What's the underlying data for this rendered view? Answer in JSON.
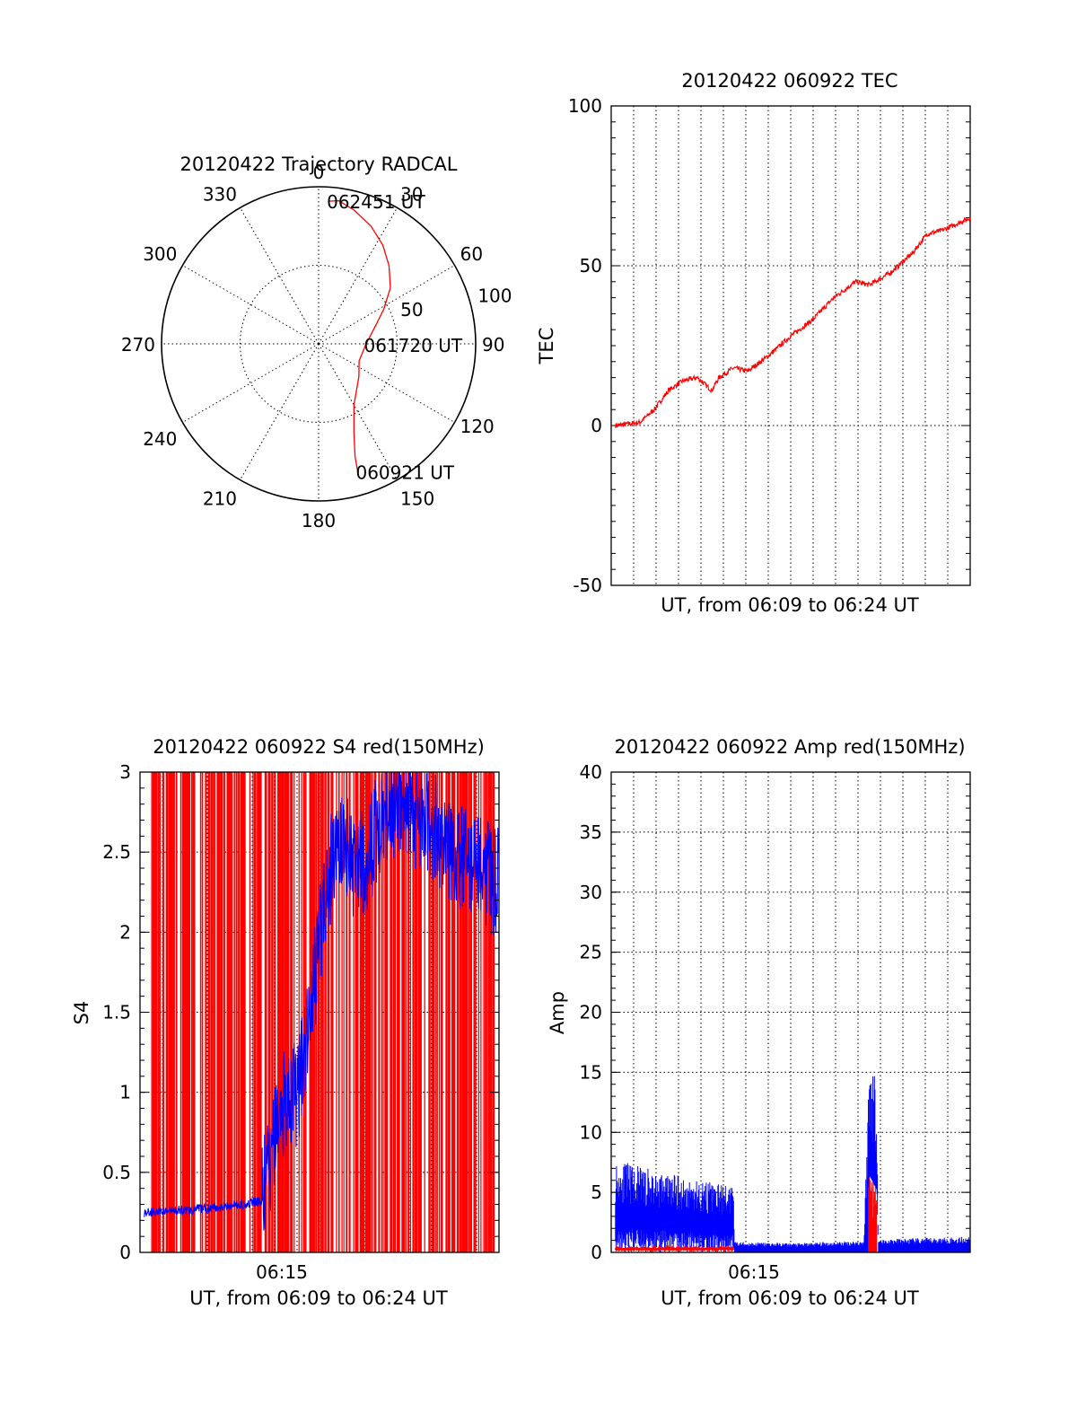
{
  "chart_data": [
    {
      "type": "polar",
      "title": "20120422 Trajectory RADCAL",
      "azimuth_labels": [
        "0",
        "30",
        "60",
        "90",
        "120",
        "150",
        "180",
        "210",
        "240",
        "270",
        "300",
        "330"
      ],
      "radial_labels": [
        "50",
        "100"
      ],
      "rmax": 100,
      "grid": true,
      "colors": {
        "trajectory": "#ff0000"
      },
      "series": [
        {
          "values": [
            [
              163,
              85
            ],
            [
              162,
              75
            ],
            [
              158,
              60
            ],
            [
              150,
              45
            ],
            [
              129,
              33
            ],
            [
              113,
              28
            ],
            [
              91,
              30
            ],
            [
              74,
              37
            ],
            [
              62,
              47
            ],
            [
              52,
              58
            ],
            [
              42,
              67
            ],
            [
              33,
              75
            ],
            [
              24,
              82
            ],
            [
              15,
              88
            ],
            [
              8,
              92
            ],
            [
              4,
              91
            ]
          ]
        }
      ],
      "annotations": [
        {
          "text": "062451 UT",
          "az": 4,
          "r": 91
        },
        {
          "text": "061720 UT",
          "az": 91,
          "r": 30
        },
        {
          "text": "060921 UT",
          "az": 163,
          "r": 85
        }
      ]
    },
    {
      "type": "line",
      "title": "20120422 060922 TEC",
      "xlabel": "UT, from 06:09 to 06:24 UT",
      "ylabel": "TEC",
      "xlim": [
        6.15,
        6.4
      ],
      "ylim": [
        -50,
        100
      ],
      "yticks": [
        "100",
        "50",
        "0",
        "-50"
      ],
      "grid": true,
      "colors": {
        "tec": "#ff0000"
      },
      "series": [
        {
          "x": [
            6.153,
            6.17,
            6.18,
            6.19,
            6.2,
            6.21,
            6.22,
            6.225,
            6.235,
            6.245,
            6.26,
            6.275,
            6.29,
            6.305,
            6.32,
            6.33,
            6.345,
            6.36,
            6.37,
            6.38,
            6.4
          ],
          "y": [
            0,
            1,
            5,
            11,
            14,
            15,
            11,
            15,
            18,
            17,
            22,
            28,
            33,
            40,
            45,
            44,
            48,
            54,
            60,
            61,
            65
          ]
        }
      ]
    },
    {
      "type": "line",
      "title": "20120422 060922 S4 red(150MHz)",
      "xlabel": "UT, from 06:09 to 06:24 UT",
      "ylabel": "S4",
      "xlim": [
        6.15,
        6.4
      ],
      "ylim": [
        0,
        3
      ],
      "xticks": [
        "06:15"
      ],
      "yticks": [
        "0",
        "0.5",
        "1",
        "1.5",
        "2",
        "2.5",
        "3"
      ],
      "grid": true,
      "colors": {
        "red": "#ff0000",
        "blue": "#0000ff"
      },
      "series": [
        {
          "x": [
            6.153,
            6.175,
            6.2,
            6.22,
            6.235,
            6.25,
            6.26,
            6.27,
            6.28,
            6.29,
            6.3,
            6.31,
            6.32,
            6.33,
            6.35,
            6.37,
            6.4
          ],
          "y": [
            0.25,
            0.26,
            0.28,
            0.3,
            0.32,
            0.95,
            1.0,
            1.6,
            2.3,
            2.6,
            2.4,
            2.5,
            2.8,
            2.8,
            2.7,
            2.5,
            2.3
          ]
        }
      ]
    },
    {
      "type": "line",
      "title": "20120422 060922 Amp red(150MHz)",
      "xlabel": "UT, from 06:09 to 06:24 UT",
      "ylabel": "Amp",
      "xlim": [
        6.15,
        6.4
      ],
      "ylim": [
        0,
        40
      ],
      "xticks": [
        "06:15"
      ],
      "yticks": [
        "0",
        "5",
        "10",
        "15",
        "20",
        "25",
        "30",
        "35",
        "40"
      ],
      "grid": true,
      "colors": {
        "red": "#ff0000",
        "blue": "#0000ff"
      },
      "series": [
        {
          "x": [
            6.153,
            6.17,
            6.19,
            6.21,
            6.235,
            6.236,
            6.28,
            6.3,
            6.326,
            6.33,
            6.335,
            6.336,
            6.37,
            6.4
          ],
          "y": [
            7,
            6.5,
            6,
            5.5,
            5,
            0.8,
            0.7,
            0.8,
            0.9,
            16,
            13,
            1,
            1.1,
            1.2
          ]
        }
      ]
    }
  ]
}
